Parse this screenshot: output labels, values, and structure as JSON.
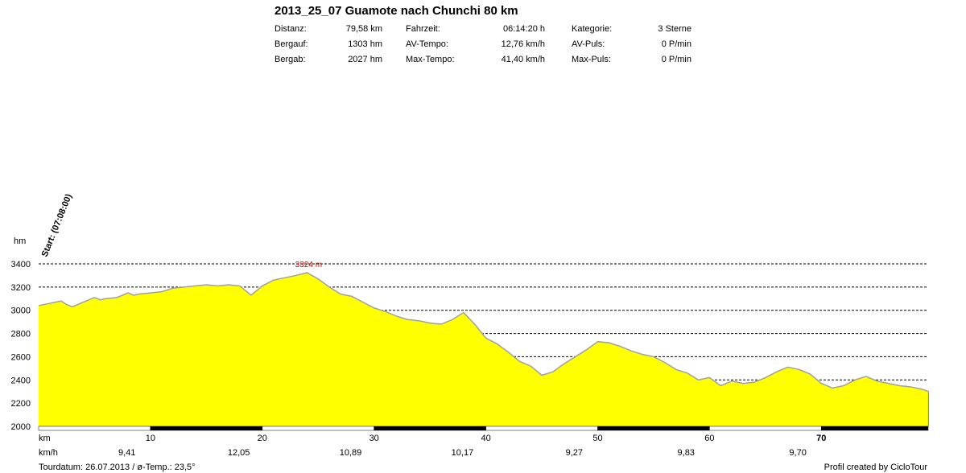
{
  "header": {
    "title": "2013_25_07 Guamote nach Chunchi 80 km",
    "stats": [
      {
        "label": "Distanz:",
        "value": "79,58 km"
      },
      {
        "label": "Bergauf:",
        "value": "1303 hm"
      },
      {
        "label": "Bergab:",
        "value": "2027 hm"
      },
      {
        "label": "Fahrzeit:",
        "value": "06:14:20 h"
      },
      {
        "label": "AV-Tempo:",
        "value": "12,76 km/h"
      },
      {
        "label": "Max-Tempo:",
        "value": "41,40 km/h"
      },
      {
        "label": "Kategorie:",
        "value": "3 Sterne"
      },
      {
        "label": "AV-Puls:",
        "value": "0 P/min"
      },
      {
        "label": "Max-Puls:",
        "value": "0 P/min"
      }
    ]
  },
  "chart_data": {
    "type": "area",
    "ylabel": "hm",
    "xlabel": "km",
    "ylim": [
      2000,
      3400
    ],
    "xlim": [
      0,
      79.58
    ],
    "y_ticks": [
      "2000",
      "2200",
      "2400",
      "2600",
      "2800",
      "3000",
      "3200",
      "3400"
    ],
    "x_ticks": [
      "10",
      "20",
      "30",
      "40",
      "50",
      "60",
      "70"
    ],
    "grid": true,
    "fill_color": "#ffff00",
    "line_color": "#a0a0a0",
    "start_label": "Start: (07:08:00)",
    "max_label": "3324 m",
    "max_label_color": "#cc0000",
    "speed_unit": "km/h",
    "speeds": [
      "9,41",
      "12,05",
      "10,89",
      "10,17",
      "9,27",
      "9,83",
      "9,70"
    ],
    "x": [
      0,
      1,
      1.5,
      2,
      2.5,
      3,
      3.5,
      4,
      5,
      5.5,
      6,
      7,
      8,
      8.5,
      9,
      10,
      11,
      12,
      13,
      14,
      15,
      16,
      17,
      18,
      19,
      20,
      21,
      22,
      23,
      24,
      25,
      26,
      27,
      28,
      29,
      30,
      31,
      32,
      33,
      34,
      35,
      36,
      37,
      38,
      39,
      40,
      41,
      42,
      43,
      44,
      45,
      46,
      47,
      48,
      49,
      50,
      51,
      52,
      53,
      54,
      55,
      56,
      57,
      58,
      59,
      60,
      61,
      62,
      63,
      64,
      65,
      66,
      67,
      68,
      69,
      70,
      71,
      72,
      73,
      74,
      75,
      76,
      77,
      78,
      79,
      79.58
    ],
    "y": [
      3040,
      3060,
      3070,
      3080,
      3050,
      3030,
      3050,
      3070,
      3110,
      3090,
      3100,
      3110,
      3150,
      3130,
      3140,
      3150,
      3160,
      3190,
      3200,
      3210,
      3220,
      3210,
      3220,
      3210,
      3130,
      3210,
      3260,
      3280,
      3300,
      3324,
      3270,
      3200,
      3140,
      3120,
      3070,
      3020,
      2990,
      2950,
      2920,
      2910,
      2890,
      2880,
      2920,
      2980,
      2880,
      2760,
      2710,
      2640,
      2560,
      2520,
      2440,
      2470,
      2540,
      2600,
      2660,
      2730,
      2720,
      2690,
      2650,
      2620,
      2600,
      2550,
      2490,
      2460,
      2400,
      2420,
      2350,
      2390,
      2370,
      2380,
      2420,
      2470,
      2510,
      2490,
      2450,
      2370,
      2330,
      2350,
      2400,
      2430,
      2390,
      2370,
      2350,
      2340,
      2320,
      2300
    ]
  },
  "footer": {
    "tour_date": "Tourdatum: 26.07.2013  /  ø-Temp.: 23,5°",
    "credit": "Profil created by CicloTour"
  }
}
